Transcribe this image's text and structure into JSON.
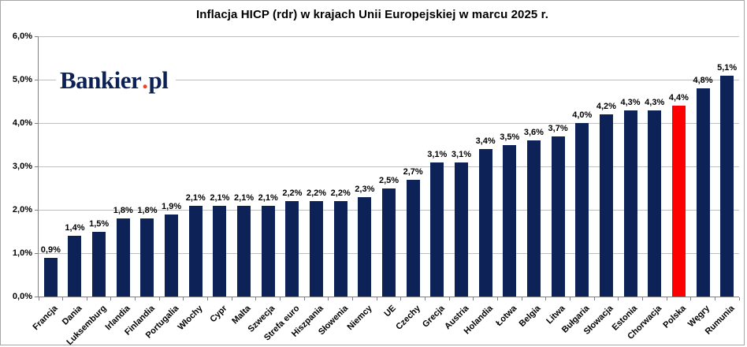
{
  "frame": {
    "border_color": "#a6a6a6",
    "background": "#ffffff"
  },
  "logo": {
    "main": "Bankier",
    "dot": ".",
    "suffix": "pl",
    "color": "#0c2154",
    "dot_color": "#e8461d"
  },
  "chart_data": {
    "type": "bar",
    "title": "Inflacja HICP (rdr) w krajach Unii Europejskiej w marcu 2025 r.",
    "categories": [
      "Francja",
      "Dania",
      "Luksemburg",
      "Irlandia",
      "Finlandia",
      "Portugalia",
      "Włochy",
      "Cypr",
      "Malta",
      "Szwecja",
      "Strefa euro",
      "Hiszpania",
      "Słowenia",
      "Niemcy",
      "UE",
      "Czechy",
      "Grecja",
      "Austria",
      "Holandia",
      "Łotwa",
      "Belgia",
      "Litwa",
      "Bułgaria",
      "Słowacja",
      "Estonia",
      "Chorwacja",
      "Polska",
      "Węgry",
      "Rumunia"
    ],
    "values": [
      0.9,
      1.4,
      1.5,
      1.8,
      1.8,
      1.9,
      2.1,
      2.1,
      2.1,
      2.1,
      2.2,
      2.2,
      2.2,
      2.3,
      2.5,
      2.7,
      3.1,
      3.1,
      3.4,
      3.5,
      3.6,
      3.7,
      4.0,
      4.2,
      4.3,
      4.3,
      4.4,
      4.8,
      5.1
    ],
    "value_labels": [
      "0,9%",
      "1,4%",
      "1,5%",
      "1,8%",
      "1,8%",
      "1,9%",
      "2,1%",
      "2,1%",
      "2,1%",
      "2,1%",
      "2,2%",
      "2,2%",
      "2,2%",
      "2,3%",
      "2,5%",
      "2,7%",
      "3,1%",
      "3,1%",
      "3,4%",
      "3,5%",
      "3,6%",
      "3,7%",
      "4,0%",
      "4,2%",
      "4,3%",
      "4,3%",
      "4,4%",
      "4,8%",
      "5,1%"
    ],
    "y_tick_labels": [
      "0,0%",
      "1,0%",
      "2,0%",
      "3,0%",
      "4,0%",
      "5,0%",
      "6,0%"
    ],
    "ylim": [
      0,
      6
    ],
    "grid": true,
    "legend": "none",
    "xlabel": "",
    "ylabel": "",
    "bar_color": "#0d2257",
    "highlight": {
      "category": "Polska",
      "index": 26,
      "color": "#ff0000"
    },
    "gridline_color": "#bfbfbf",
    "axis_color": "#7f7f7f",
    "label_color": "#000000"
  }
}
